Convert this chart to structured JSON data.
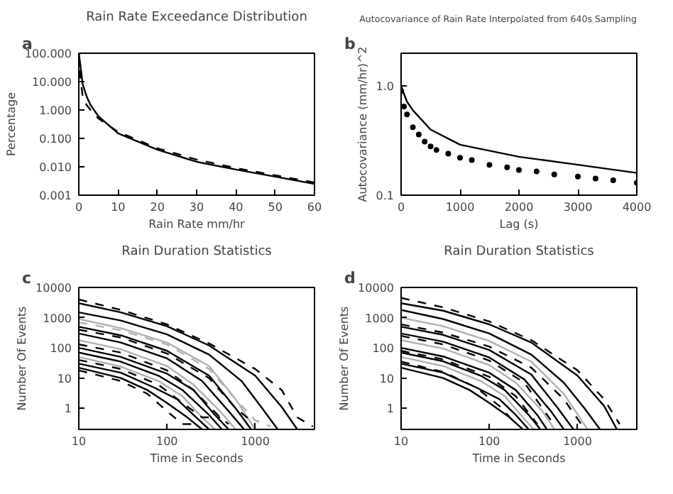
{
  "chart_data": [
    {
      "type": "line",
      "title": "Rain Rate Exceedance Distribution",
      "xlabel": "Rain Rate mm/hr",
      "ylabel": "Percentage",
      "annotations": [
        "a"
      ],
      "log": "y",
      "grid": false,
      "xlim": [
        0,
        60
      ],
      "ylim": [
        0.001,
        100
      ],
      "xticks": [
        0,
        10,
        20,
        30,
        40,
        50,
        60
      ],
      "yticks": [
        {
          "value": 0.001,
          "label": "0.001"
        },
        {
          "value": 0.01,
          "label": "0.010"
        },
        {
          "value": 0.1,
          "label": "0.100"
        },
        {
          "value": 1,
          "label": "1.000"
        },
        {
          "value": 10,
          "label": "10.000"
        },
        {
          "value": 100,
          "label": "100.000"
        }
      ],
      "series": [
        {
          "color": "#000000",
          "line_style": "solid",
          "x": [
            0,
            0.5,
            1,
            2,
            3,
            5,
            10,
            20,
            30,
            40,
            50,
            60
          ],
          "values": [
            100,
            30,
            8,
            3,
            1.5,
            0.6,
            0.15,
            0.04,
            0.015,
            0.008,
            0.0045,
            0.0025
          ]
        },
        {
          "color": "#000000",
          "line_style": "dashed",
          "x": [
            0,
            0.5,
            1,
            2,
            3,
            5,
            10,
            20,
            30,
            40,
            50,
            60
          ],
          "values": [
            100,
            10,
            3,
            1.5,
            1,
            0.5,
            0.17,
            0.045,
            0.018,
            0.009,
            0.005,
            0.0028
          ]
        }
      ]
    },
    {
      "type": "line",
      "title": "Autocovariance of Rain Rate Interpolated from 640s Sampling",
      "xlabel": "Lag (s)",
      "ylabel": "Autocovariance (mm/hr)^2",
      "annotations": [
        "b"
      ],
      "log": "y",
      "grid": false,
      "xlim": [
        0,
        4000
      ],
      "ylim": [
        0.1,
        2
      ],
      "xticks": [
        0,
        1000,
        2000,
        3000,
        4000
      ],
      "yticks": [
        {
          "value": 0.1,
          "label": "0.1"
        },
        {
          "value": 1,
          "label": "1.0"
        }
      ],
      "series": [
        {
          "color": "#000000",
          "line_style": "solid",
          "x": [
            0,
            100,
            200,
            500,
            1000,
            2000,
            3000,
            4000
          ],
          "values": [
            1.0,
            0.72,
            0.6,
            0.4,
            0.29,
            0.225,
            0.19,
            0.16
          ]
        },
        {
          "type": "scatter",
          "marker": "circle",
          "color": "#000000",
          "x": [
            0,
            50,
            100,
            200,
            300,
            400,
            500,
            600,
            800,
            1000,
            1200,
            1500,
            1800,
            2000,
            2300,
            2600,
            3000,
            3300,
            3600,
            4000
          ],
          "values": [
            0.9,
            0.65,
            0.55,
            0.42,
            0.36,
            0.31,
            0.28,
            0.26,
            0.24,
            0.22,
            0.21,
            0.19,
            0.18,
            0.17,
            0.165,
            0.155,
            0.148,
            0.142,
            0.137,
            0.13
          ]
        }
      ]
    },
    {
      "type": "line",
      "title": "Rain Duration Statistics",
      "xlabel": "Time in Seconds",
      "ylabel": "Number Of Events",
      "annotations": [
        "c"
      ],
      "log": "xy",
      "grid": false,
      "xlim": [
        10,
        4700
      ],
      "ylim": [
        0.2,
        10000
      ],
      "xticks": [
        10,
        100,
        1000
      ],
      "yticks": [
        1,
        10,
        100,
        1000,
        10000
      ],
      "series": [
        {
          "color": "#000000",
          "line_style": "solid",
          "x": [
            10,
            30,
            100,
            300,
            1000,
            2000,
            3000
          ],
          "values": [
            3000,
            1500,
            520,
            120,
            12,
            1.1,
            0.2
          ]
        },
        {
          "color": "#000000",
          "line_style": "dashed",
          "x": [
            10,
            30,
            100,
            300,
            1000,
            2000,
            3000,
            4500
          ],
          "values": [
            4000,
            1800,
            600,
            140,
            20,
            4,
            0.5,
            0.25
          ]
        },
        {
          "color": "#000000",
          "line_style": "solid",
          "x": [
            10,
            30,
            100,
            300,
            700,
            1200,
            1800
          ],
          "values": [
            1500,
            800,
            280,
            60,
            8,
            1,
            0.2
          ]
        },
        {
          "color": "#b0b0b0",
          "line_style": "solid",
          "x": [
            10,
            30,
            100,
            300,
            600,
            1000
          ],
          "values": [
            900,
            450,
            150,
            25,
            2,
            0.2
          ]
        },
        {
          "color": "#b0b0b0",
          "line_style": "dashed",
          "x": [
            10,
            30,
            100,
            300,
            600,
            1000,
            1500
          ],
          "values": [
            700,
            380,
            130,
            20,
            2,
            0.4,
            0.25
          ]
        },
        {
          "color": "#000000",
          "line_style": "solid",
          "x": [
            10,
            30,
            100,
            300,
            600,
            900
          ],
          "values": [
            500,
            260,
            80,
            12,
            1,
            0.2
          ]
        },
        {
          "color": "#000000",
          "line_style": "dashed",
          "x": [
            10,
            30,
            100,
            300,
            600,
            1000
          ],
          "values": [
            400,
            220,
            65,
            10,
            1,
            0.3
          ]
        },
        {
          "color": "#000000",
          "line_style": "solid",
          "x": [
            10,
            30,
            100,
            250,
            500,
            750
          ],
          "values": [
            300,
            150,
            45,
            8,
            0.8,
            0.2
          ]
        },
        {
          "color": "#b0b0b0",
          "line_style": "solid",
          "x": [
            10,
            30,
            100,
            200,
            400,
            600
          ],
          "values": [
            180,
            90,
            25,
            6,
            0.8,
            0.2
          ]
        },
        {
          "color": "#000000",
          "line_style": "dashed",
          "x": [
            10,
            30,
            100,
            200,
            400,
            500
          ],
          "values": [
            130,
            70,
            18,
            4,
            0.5,
            0.3
          ]
        },
        {
          "color": "#000000",
          "line_style": "solid",
          "x": [
            10,
            30,
            100,
            200,
            350,
            500
          ],
          "values": [
            100,
            50,
            14,
            4,
            0.6,
            0.2
          ]
        },
        {
          "color": "#000000",
          "line_style": "solid",
          "x": [
            10,
            30,
            80,
            150,
            300,
            420
          ],
          "values": [
            70,
            35,
            12,
            4,
            0.6,
            0.2
          ]
        },
        {
          "color": "#b0b0b0",
          "line_style": "solid",
          "x": [
            10,
            30,
            80,
            150,
            250,
            350
          ],
          "values": [
            50,
            24,
            8,
            2.5,
            0.5,
            0.2
          ]
        },
        {
          "color": "#000000",
          "line_style": "dashed",
          "x": [
            10,
            30,
            80,
            150,
            250,
            400
          ],
          "values": [
            40,
            20,
            6,
            1.5,
            0.5,
            0.5
          ]
        },
        {
          "color": "#000000",
          "line_style": "solid",
          "x": [
            10,
            30,
            70,
            130,
            200,
            300
          ],
          "values": [
            30,
            15,
            5,
            2,
            0.6,
            0.2
          ]
        },
        {
          "color": "#000000",
          "line_style": "solid",
          "x": [
            10,
            30,
            60,
            100,
            170,
            250
          ],
          "values": [
            22,
            10,
            4,
            1.5,
            0.5,
            0.2
          ]
        },
        {
          "color": "#000000",
          "line_style": "dashed",
          "x": [
            10,
            30,
            60,
            100,
            150,
            200
          ],
          "values": [
            18,
            8,
            3,
            0.8,
            0.3,
            0.3
          ]
        }
      ]
    },
    {
      "type": "line",
      "title": "Rain Duration Statistics",
      "xlabel": "Time in Seconds",
      "ylabel": "Number Of Events",
      "annotations": [
        "d"
      ],
      "log": "xy",
      "grid": false,
      "xlim": [
        10,
        4700
      ],
      "ylim": [
        0.2,
        10000
      ],
      "xticks": [
        10,
        100,
        1000
      ],
      "yticks": [
        1,
        10,
        100,
        1000,
        10000
      ],
      "series": [
        {
          "color": "#000000",
          "line_style": "solid",
          "x": [
            10,
            30,
            100,
            300,
            1000,
            2000,
            2800
          ],
          "values": [
            3000,
            1700,
            600,
            150,
            12,
            1.2,
            0.2
          ]
        },
        {
          "color": "#000000",
          "line_style": "dashed",
          "x": [
            10,
            30,
            100,
            300,
            1000,
            2000,
            3000
          ],
          "values": [
            4500,
            2200,
            750,
            180,
            18,
            2,
            0.3
          ]
        },
        {
          "color": "#000000",
          "line_style": "solid",
          "x": [
            10,
            30,
            100,
            300,
            700,
            1200,
            1800
          ],
          "values": [
            1800,
            900,
            300,
            60,
            7,
            1,
            0.2
          ]
        },
        {
          "color": "#b0b0b0",
          "line_style": "solid",
          "x": [
            10,
            30,
            100,
            300,
            700,
            1300
          ],
          "values": [
            1000,
            520,
            170,
            35,
            3,
            0.2
          ]
        },
        {
          "color": "#000000",
          "line_style": "dashed",
          "x": [
            10,
            30,
            100,
            300,
            700,
            1100
          ],
          "values": [
            600,
            320,
            110,
            22,
            2,
            0.3
          ]
        },
        {
          "color": "#000000",
          "line_style": "solid",
          "x": [
            10,
            30,
            100,
            300,
            600,
            900
          ],
          "values": [
            500,
            270,
            85,
            13,
            1,
            0.2
          ]
        },
        {
          "color": "#000000",
          "line_style": "solid",
          "x": [
            10,
            30,
            100,
            250,
            500,
            700
          ],
          "values": [
            300,
            160,
            48,
            9,
            0.8,
            0.2
          ]
        },
        {
          "color": "#000000",
          "line_style": "dashed",
          "x": [
            10,
            30,
            100,
            250,
            500
          ],
          "values": [
            250,
            130,
            38,
            7,
            0.4
          ]
        },
        {
          "color": "#b0b0b0",
          "line_style": "solid",
          "x": [
            10,
            30,
            100,
            200,
            400,
            550
          ],
          "values": [
            180,
            95,
            27,
            7,
            0.8,
            0.2
          ]
        },
        {
          "color": "#000000",
          "line_style": "solid",
          "x": [
            10,
            30,
            100,
            200,
            350,
            450
          ],
          "values": [
            100,
            52,
            15,
            4,
            0.6,
            0.2
          ]
        },
        {
          "color": "#000000",
          "line_style": "dashed",
          "x": [
            10,
            30,
            100,
            200,
            350
          ],
          "values": [
            80,
            42,
            11,
            2.5,
            0.3
          ]
        },
        {
          "color": "#000000",
          "line_style": "solid",
          "x": [
            10,
            30,
            80,
            150,
            280,
            380
          ],
          "values": [
            70,
            36,
            12,
            4,
            0.6,
            0.2
          ]
        },
        {
          "color": "#b0b0b0",
          "line_style": "solid",
          "x": [
            10,
            30,
            80,
            150,
            240,
            320
          ],
          "values": [
            50,
            25,
            8,
            2.5,
            0.5,
            0.2
          ]
        },
        {
          "color": "#000000",
          "line_style": "solid",
          "x": [
            10,
            30,
            70,
            130,
            200,
            280
          ],
          "values": [
            30,
            15,
            5,
            2,
            0.6,
            0.2
          ]
        },
        {
          "color": "#000000",
          "line_style": "dashed",
          "x": [
            10,
            30,
            70,
            130,
            200
          ],
          "values": [
            35,
            16,
            5,
            1.2,
            0.3
          ]
        },
        {
          "color": "#000000",
          "line_style": "solid",
          "x": [
            10,
            30,
            60,
            100,
            170,
            240
          ],
          "values": [
            22,
            10,
            4,
            1.5,
            0.5,
            0.2
          ]
        }
      ]
    }
  ]
}
